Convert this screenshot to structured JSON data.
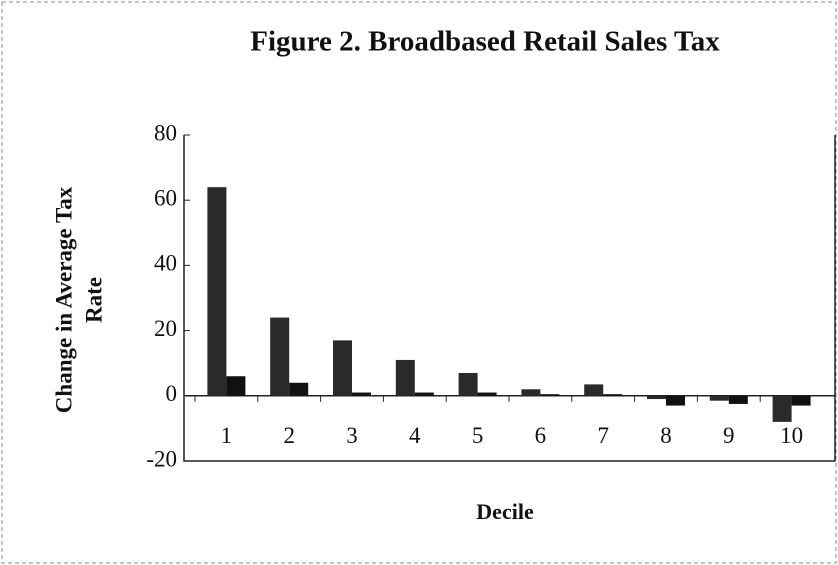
{
  "chart_data": {
    "type": "bar",
    "title": "Figure 2.  Broadbased Retail Sales Tax",
    "ylabel": [
      "Change in Average Tax",
      "Rate"
    ],
    "xlabel": "Decile",
    "categories": [
      "1",
      "2",
      "3",
      "4",
      "5",
      "6",
      "7",
      "8",
      "9",
      "10"
    ],
    "series": [
      {
        "color": "#2a2a2a",
        "values": [
          64,
          24,
          17,
          11,
          7,
          2,
          3.5,
          -1,
          -1.5,
          -8
        ]
      },
      {
        "color": "#111111",
        "values": [
          6,
          4,
          1,
          1,
          1,
          0.5,
          0.5,
          -3,
          -2.5,
          -3
        ]
      }
    ],
    "ylim": [
      -20,
      80
    ],
    "yticks": [
      -20,
      0,
      20,
      40,
      60,
      80
    ],
    "grid": false
  }
}
